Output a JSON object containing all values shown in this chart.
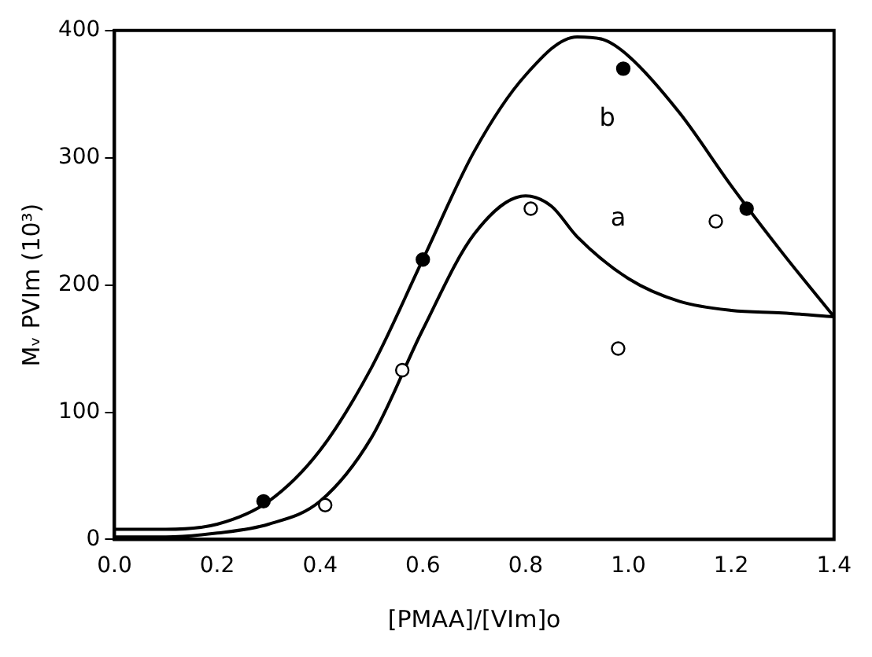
{
  "chart_data": {
    "type": "scatter",
    "xlabel": "[PMAA]/[VIm]o",
    "ylabel": "Mᵥ PVIm (10³)",
    "xlim": [
      0,
      1.4
    ],
    "xticks": [
      {
        "value": 0,
        "label": "0.0"
      },
      {
        "value": 0.2,
        "label": "0.2"
      },
      {
        "value": 0.4,
        "label": "0.4"
      },
      {
        "value": 0.6,
        "label": "0.6"
      },
      {
        "value": 0.8,
        "label": "0.8"
      },
      {
        "value": 1,
        "label": "1.0"
      },
      {
        "value": 1.2,
        "label": "1.2"
      },
      {
        "value": 1.4,
        "label": "1.4"
      }
    ],
    "ylim": [
      0,
      400
    ],
    "yticks": [
      0,
      100,
      200,
      300,
      400
    ],
    "grid": false,
    "legend": false,
    "series": [
      {
        "color": "#000000",
        "marker": "circle",
        "x": [
          0.29,
          0.6,
          0.99,
          1.23
        ],
        "values": [
          30,
          220,
          370,
          260
        ]
      },
      {
        "color": "#ffffff",
        "marker": "circle",
        "x": [
          0.41,
          0.56,
          0.81,
          0.98,
          1.17
        ],
        "values": [
          27,
          133,
          260,
          150,
          250
        ]
      },
      {
        "type": "line",
        "marker": "none",
        "color": "#000000",
        "x": [
          0,
          0.1,
          0.2,
          0.3,
          0.4,
          0.5,
          0.6,
          0.7,
          0.8,
          0.9,
          0.95,
          1.0,
          1.1,
          1.2,
          1.3,
          1.4
        ],
        "values": [
          8,
          8,
          12,
          30,
          70,
          135,
          220,
          305,
          365,
          395,
          393,
          380,
          335,
          278,
          225,
          175
        ]
      },
      {
        "type": "line",
        "marker": "none",
        "color": "#000000",
        "x": [
          0,
          0.1,
          0.2,
          0.3,
          0.4,
          0.5,
          0.6,
          0.7,
          0.8,
          0.85,
          0.9,
          1.0,
          1.1,
          1.2,
          1.3,
          1.4
        ],
        "values": [
          2,
          2,
          5,
          12,
          30,
          80,
          165,
          240,
          270,
          262,
          238,
          205,
          187,
          180,
          178,
          175
        ]
      }
    ],
    "annotations": [
      "a",
      "b"
    ]
  }
}
